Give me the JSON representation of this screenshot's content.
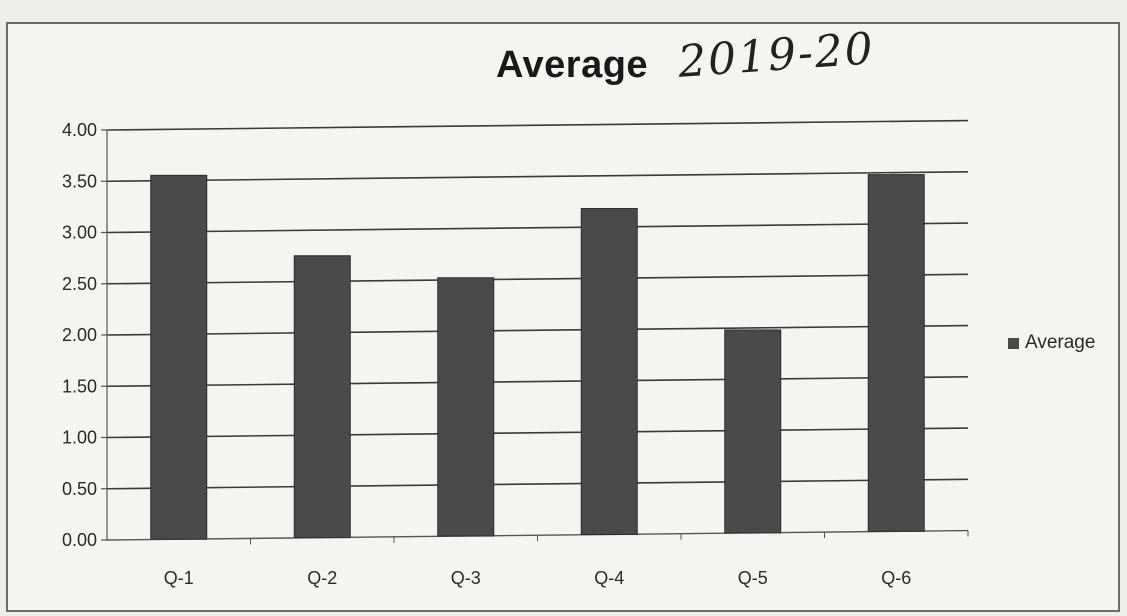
{
  "colors": {
    "bar": "#4a4a4a",
    "bar_edge": "#2c2c2c",
    "grid": "#3a3a3a",
    "axis": "#555555"
  },
  "chart_data": {
    "type": "bar",
    "title": "Average",
    "title_handwritten": "2019-20",
    "categories": [
      "Q-1",
      "Q-2",
      "Q-3",
      "Q-4",
      "Q-5",
      "Q-6"
    ],
    "series": [
      {
        "name": "Average",
        "values": [
          3.55,
          2.75,
          2.52,
          3.18,
          1.98,
          3.48
        ]
      }
    ],
    "ylim": [
      0,
      4
    ],
    "yticks": [
      "0.00",
      "0.50",
      "1.00",
      "1.50",
      "2.00",
      "2.50",
      "3.00",
      "3.50",
      "4.00"
    ],
    "grid": true,
    "legend_position": "right"
  }
}
